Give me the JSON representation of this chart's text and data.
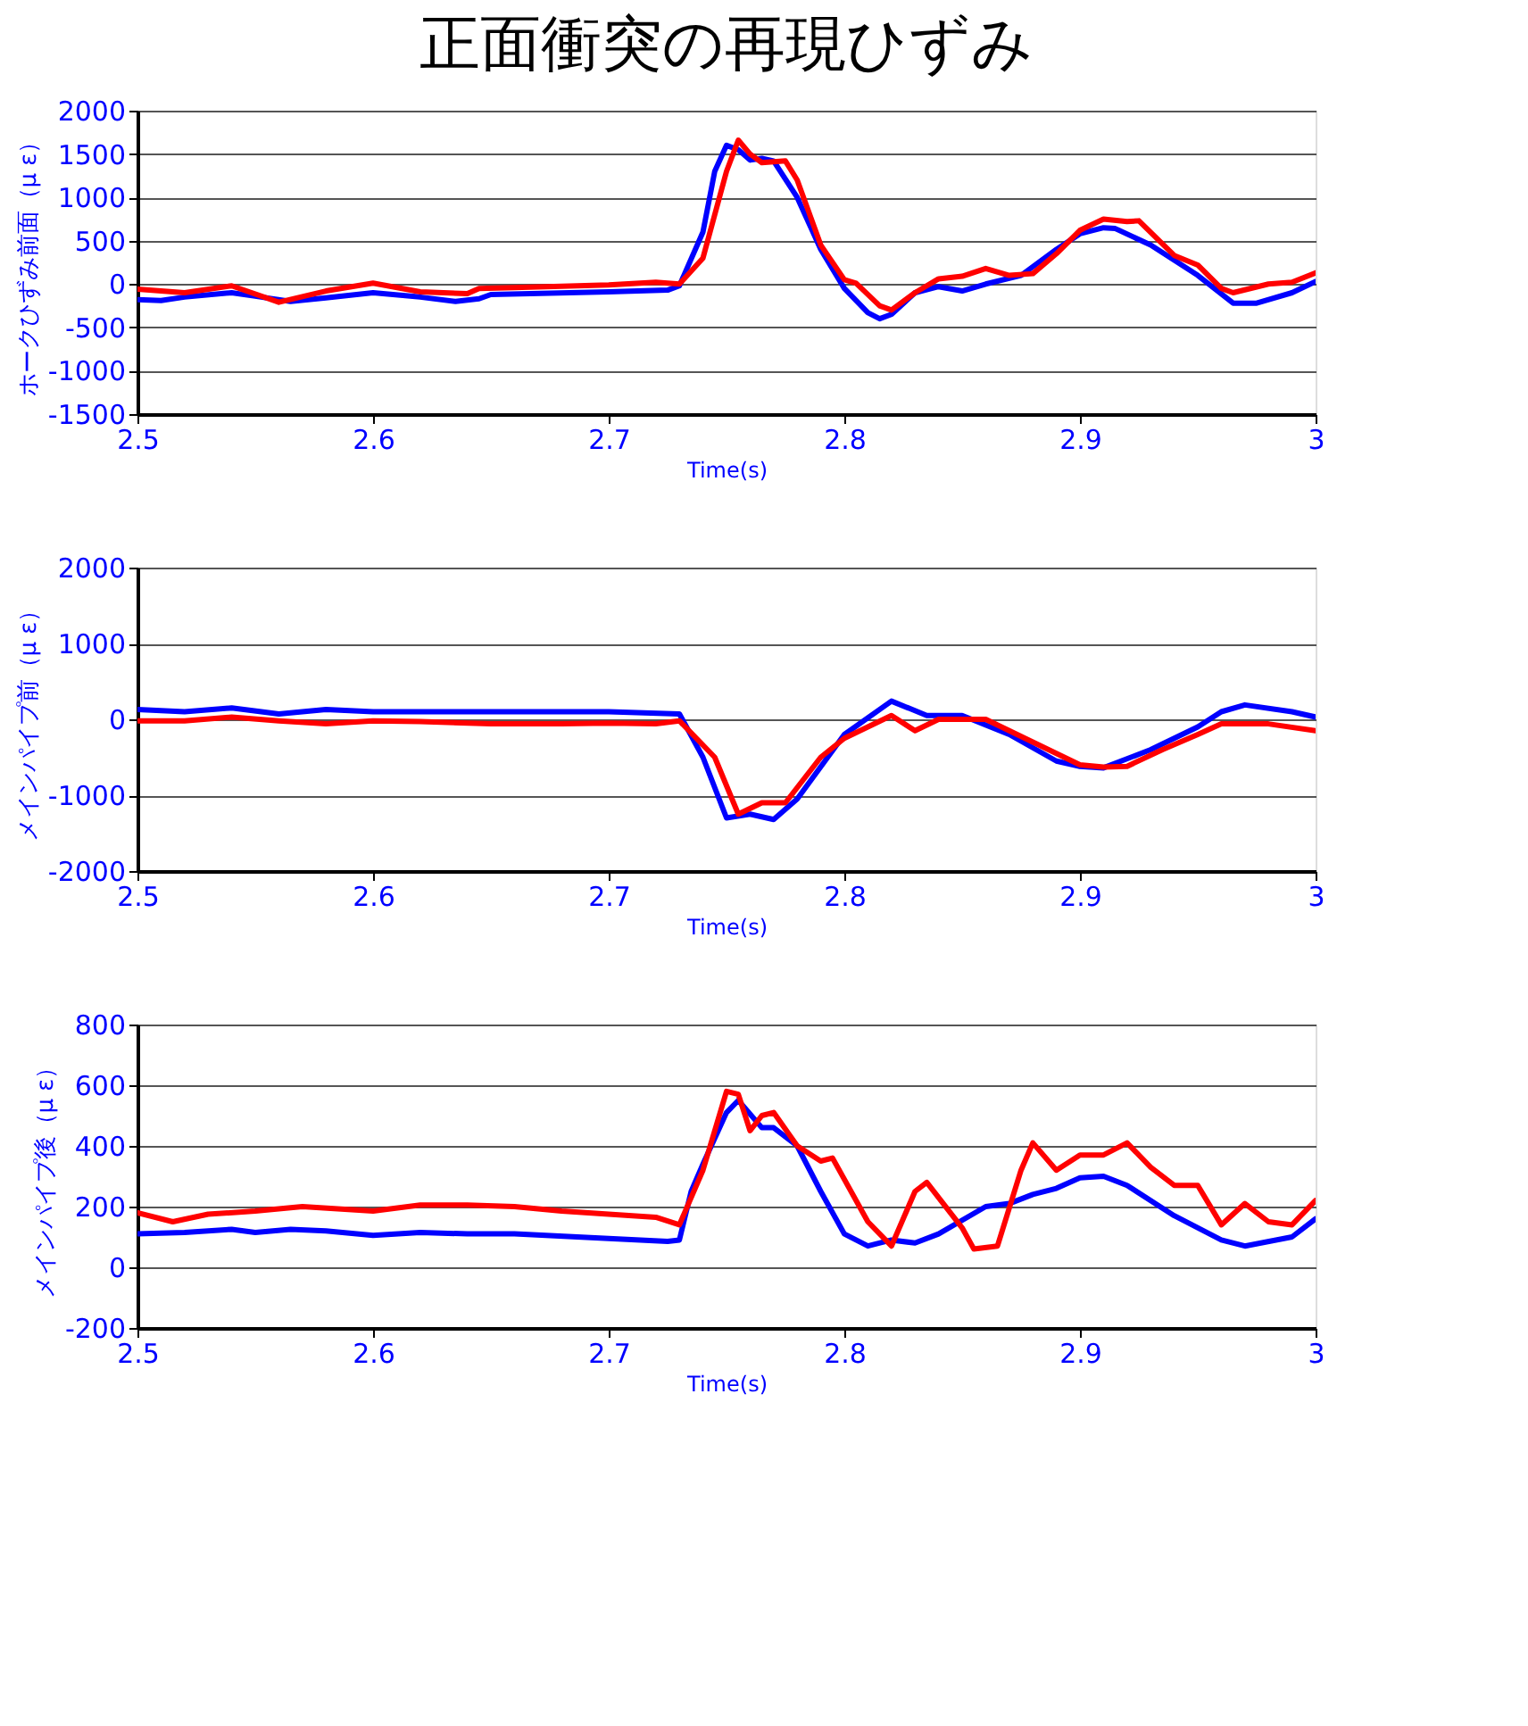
{
  "chart_data": [
    {
      "type": "line",
      "title": "正面衝突の再現ひずみ",
      "xlabel": "Time(s)",
      "ylabel": "ホークひずみ前面（μ ε）",
      "xlim": [
        2.5,
        3
      ],
      "xticks": [
        2.5,
        2.6,
        2.7,
        2.8,
        2.9,
        3
      ],
      "ylim": [
        -1500,
        2000
      ],
      "yticks": [
        -1500,
        -1000,
        -500,
        0,
        500,
        1000,
        1500,
        2000
      ],
      "grid": "y",
      "series": [
        {
          "color": "#0000ff",
          "x": [
            2.5,
            2.51,
            2.52,
            2.54,
            2.55,
            2.565,
            2.58,
            2.6,
            2.62,
            2.635,
            2.645,
            2.65,
            2.7,
            2.725,
            2.73,
            2.74,
            2.745,
            2.75,
            2.755,
            2.76,
            2.765,
            2.77,
            2.78,
            2.79,
            2.8,
            2.81,
            2.815,
            2.82,
            2.83,
            2.84,
            2.85,
            2.86,
            2.875,
            2.89,
            2.9,
            2.91,
            2.915,
            2.93,
            2.95,
            2.965,
            2.975,
            2.99,
            3
          ],
          "values": [
            -180,
            -190,
            -150,
            -100,
            -140,
            -200,
            -160,
            -100,
            -150,
            -200,
            -170,
            -120,
            -90,
            -70,
            -20,
            600,
            1300,
            1600,
            1550,
            1430,
            1450,
            1420,
            1000,
            400,
            -50,
            -330,
            -400,
            -350,
            -100,
            -30,
            -80,
            0,
            100,
            400,
            580,
            650,
            640,
            450,
            100,
            -220,
            -220,
            -100,
            30
          ]
        },
        {
          "color": "#ff0000",
          "x": [
            2.5,
            2.52,
            2.54,
            2.56,
            2.58,
            2.6,
            2.62,
            2.64,
            2.645,
            2.66,
            2.7,
            2.72,
            2.73,
            2.74,
            2.75,
            2.755,
            2.76,
            2.765,
            2.775,
            2.78,
            2.79,
            2.8,
            2.805,
            2.815,
            2.82,
            2.83,
            2.84,
            2.85,
            2.86,
            2.87,
            2.88,
            2.89,
            2.9,
            2.91,
            2.92,
            2.925,
            2.94,
            2.95,
            2.96,
            2.965,
            2.98,
            2.99,
            3
          ],
          "values": [
            -60,
            -100,
            -20,
            -210,
            -80,
            10,
            -90,
            -110,
            -50,
            -40,
            -10,
            20,
            0,
            300,
            1300,
            1660,
            1500,
            1400,
            1420,
            1200,
            450,
            50,
            10,
            -250,
            -300,
            -100,
            60,
            90,
            180,
            100,
            120,
            350,
            620,
            750,
            720,
            730,
            330,
            220,
            -50,
            -100,
            0,
            20,
            130
          ]
        }
      ]
    },
    {
      "type": "line",
      "xlabel": "Time(s)",
      "ylabel": "メインパイプ前（μ ε）",
      "xlim": [
        2.5,
        3
      ],
      "xticks": [
        2.5,
        2.6,
        2.7,
        2.8,
        2.9,
        3
      ],
      "ylim": [
        -2000,
        2000
      ],
      "yticks": [
        -2000,
        -1000,
        0,
        1000,
        2000
      ],
      "grid": "y",
      "series": [
        {
          "color": "#0000ff",
          "x": [
            2.5,
            2.52,
            2.54,
            2.56,
            2.58,
            2.6,
            2.65,
            2.7,
            2.73,
            2.74,
            2.75,
            2.76,
            2.77,
            2.78,
            2.8,
            2.82,
            2.835,
            2.85,
            2.87,
            2.89,
            2.9,
            2.91,
            2.93,
            2.95,
            2.96,
            2.97,
            2.99,
            3
          ],
          "values": [
            130,
            100,
            150,
            70,
            130,
            100,
            100,
            100,
            70,
            -500,
            -1300,
            -1250,
            -1320,
            -1050,
            -200,
            240,
            50,
            50,
            -200,
            -550,
            -620,
            -640,
            -400,
            -100,
            100,
            190,
            100,
            30
          ]
        },
        {
          "color": "#ff0000",
          "x": [
            2.5,
            2.52,
            2.54,
            2.56,
            2.58,
            2.6,
            2.62,
            2.65,
            2.68,
            2.7,
            2.72,
            2.73,
            2.745,
            2.755,
            2.765,
            2.775,
            2.79,
            2.8,
            2.82,
            2.83,
            2.84,
            2.86,
            2.88,
            2.9,
            2.91,
            2.92,
            2.935,
            2.95,
            2.96,
            2.98,
            3
          ],
          "values": [
            -20,
            -20,
            30,
            -20,
            -60,
            -20,
            -30,
            -60,
            -60,
            -50,
            -60,
            -20,
            -500,
            -1250,
            -1100,
            -1100,
            -500,
            -250,
            50,
            -150,
            0,
            0,
            -300,
            -600,
            -630,
            -620,
            -400,
            -200,
            -60,
            -60,
            -150
          ]
        }
      ]
    },
    {
      "type": "line",
      "xlabel": "Time(s)",
      "ylabel": "メインパイプ後（μ ε）",
      "xlim": [
        2.5,
        3
      ],
      "xticks": [
        2.5,
        2.6,
        2.7,
        2.8,
        2.9,
        3
      ],
      "ylim": [
        -200,
        800
      ],
      "yticks": [
        -200,
        0,
        200,
        400,
        600,
        800
      ],
      "grid": "y",
      "series": [
        {
          "color": "#0000ff",
          "x": [
            2.5,
            2.52,
            2.54,
            2.55,
            2.565,
            2.58,
            2.6,
            2.62,
            2.64,
            2.66,
            2.7,
            2.725,
            2.73,
            2.735,
            2.74,
            2.75,
            2.755,
            2.765,
            2.77,
            2.78,
            2.79,
            2.8,
            2.81,
            2.82,
            2.83,
            2.84,
            2.86,
            2.87,
            2.88,
            2.89,
            2.9,
            2.91,
            2.92,
            2.94,
            2.96,
            2.97,
            2.99,
            3
          ],
          "values": [
            110,
            115,
            125,
            115,
            125,
            120,
            105,
            115,
            110,
            110,
            95,
            85,
            90,
            250,
            340,
            510,
            550,
            460,
            460,
            400,
            250,
            110,
            70,
            90,
            80,
            110,
            200,
            210,
            240,
            260,
            295,
            300,
            270,
            170,
            90,
            70,
            100,
            160
          ]
        },
        {
          "color": "#ff0000",
          "x": [
            2.5,
            2.515,
            2.53,
            2.55,
            2.57,
            2.6,
            2.62,
            2.64,
            2.66,
            2.68,
            2.7,
            2.72,
            2.73,
            2.74,
            2.75,
            2.755,
            2.76,
            2.765,
            2.77,
            2.78,
            2.79,
            2.795,
            2.81,
            2.82,
            2.83,
            2.835,
            2.85,
            2.855,
            2.865,
            2.875,
            2.88,
            2.89,
            2.9,
            2.91,
            2.92,
            2.93,
            2.94,
            2.95,
            2.96,
            2.97,
            2.98,
            2.99,
            3
          ],
          "values": [
            180,
            150,
            175,
            185,
            200,
            185,
            205,
            205,
            200,
            185,
            175,
            165,
            140,
            320,
            580,
            570,
            450,
            500,
            510,
            400,
            350,
            360,
            150,
            70,
            250,
            280,
            130,
            60,
            70,
            320,
            410,
            320,
            370,
            370,
            410,
            330,
            270,
            270,
            140,
            210,
            150,
            140,
            220
          ]
        }
      ]
    }
  ]
}
